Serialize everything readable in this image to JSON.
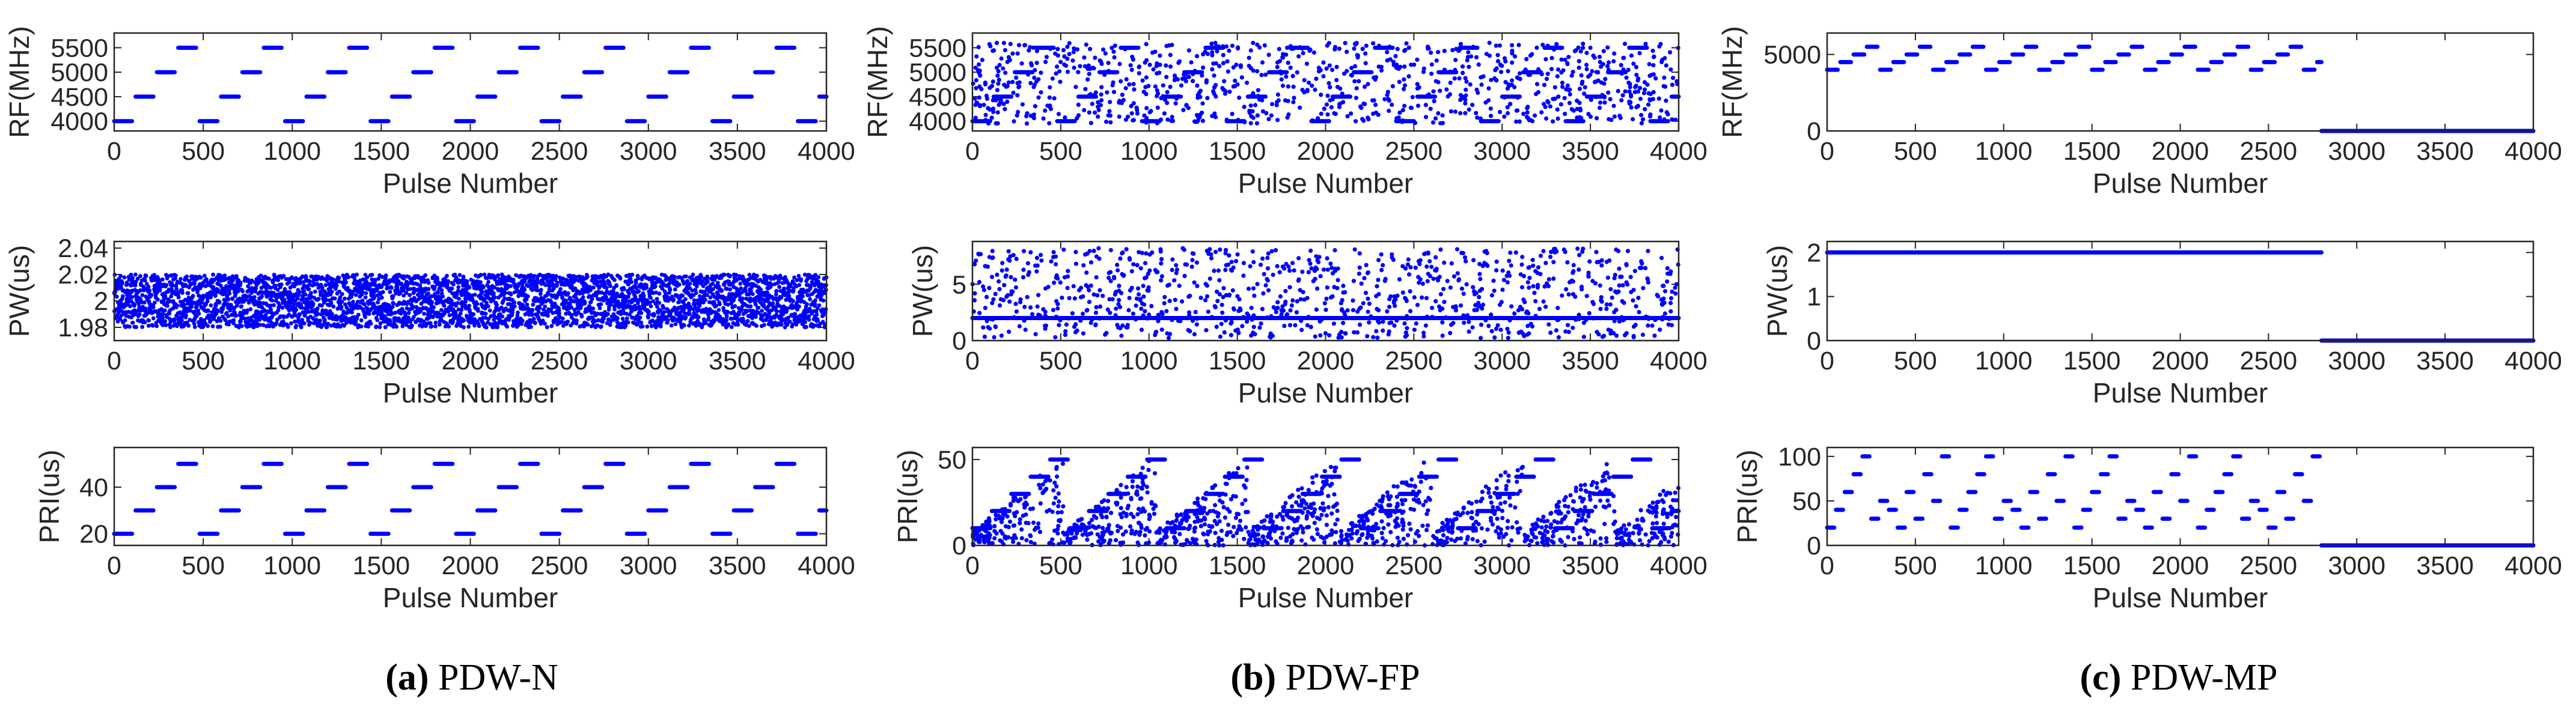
{
  "colors": {
    "marker": "#0000ff",
    "axis": "#262626",
    "background": "#ffffff"
  },
  "figure": {
    "panels": [
      {
        "id": "a",
        "caption_letter": "(a)",
        "caption_text": "PDW-N"
      },
      {
        "id": "b",
        "caption_letter": "(b)",
        "caption_text": "PDW-FP"
      },
      {
        "id": "c",
        "caption_letter": "(c)",
        "caption_text": "PDW-MP"
      }
    ]
  },
  "chart_data": [
    {
      "panel": "a",
      "type": "scatter",
      "xlabel": "Pulse Number",
      "ylabel": "RF(MHz)",
      "xlim": [
        0,
        4000
      ],
      "ylim": [
        3800,
        5800
      ],
      "xticks": [
        0,
        500,
        1000,
        1500,
        2000,
        2500,
        3000,
        3500,
        4000
      ],
      "yticks": [
        4000,
        4500,
        5000,
        5500
      ],
      "yticklabels": [
        "4000",
        "4500",
        "5000",
        "5500"
      ],
      "pattern": {
        "kind": "staircase",
        "levels": [
          4000,
          4500,
          5000,
          5500
        ],
        "segment_length": 100,
        "gap": 20,
        "start_offset": 0,
        "x_end": 4000
      }
    },
    {
      "panel": "a",
      "type": "scatter",
      "xlabel": "Pulse Number",
      "ylabel": "PW(us)",
      "xlim": [
        0,
        4000
      ],
      "ylim": [
        1.97,
        2.045
      ],
      "xticks": [
        0,
        500,
        1000,
        1500,
        2000,
        2500,
        3000,
        3500,
        4000
      ],
      "yticks": [
        1.98,
        2,
        2.02,
        2.04
      ],
      "yticklabels": [
        "1.98",
        "2",
        "2.02",
        "2.04"
      ],
      "pattern": {
        "kind": "uniform_band",
        "n_points": 4000,
        "band": [
          1.98,
          2.02
        ],
        "x_end": 4000
      }
    },
    {
      "panel": "a",
      "type": "scatter",
      "xlabel": "Pulse Number",
      "ylabel": "PRI(us)",
      "xlim": [
        0,
        4000
      ],
      "ylim": [
        15,
        57
      ],
      "xticks": [
        0,
        500,
        1000,
        1500,
        2000,
        2500,
        3000,
        3500,
        4000
      ],
      "yticks": [
        20,
        40
      ],
      "yticklabels": [
        "20",
        "40"
      ],
      "pattern": {
        "kind": "staircase",
        "levels": [
          20,
          30,
          40,
          50
        ],
        "segment_length": 100,
        "gap": 20,
        "start_offset": 0,
        "x_end": 4000
      }
    },
    {
      "panel": "b",
      "type": "scatter",
      "xlabel": "Pulse Number",
      "ylabel": "RF(MHz)",
      "xlim": [
        0,
        4000
      ],
      "ylim": [
        3800,
        5800
      ],
      "xticks": [
        0,
        500,
        1000,
        1500,
        2000,
        2500,
        3000,
        3500,
        4000
      ],
      "yticks": [
        4000,
        4500,
        5000,
        5500
      ],
      "yticklabels": [
        "4000",
        "4500",
        "5000",
        "5500"
      ],
      "pattern": {
        "kind": "staircase_noise",
        "levels": [
          4000,
          4500,
          5000,
          5500
        ],
        "segment_length": 100,
        "gap": 20,
        "start_offset": 0,
        "x_end": 4000,
        "n_noise": 1000,
        "noise_range": [
          3950,
          5600
        ]
      }
    },
    {
      "panel": "b",
      "type": "scatter",
      "xlabel": "Pulse Number",
      "ylabel": "PW(us)",
      "xlim": [
        0,
        4000
      ],
      "ylim": [
        0,
        8.8
      ],
      "xticks": [
        0,
        500,
        1000,
        1500,
        2000,
        2500,
        3000,
        3500,
        4000
      ],
      "yticks": [
        0,
        5
      ],
      "yticklabels": [
        "0",
        "5"
      ],
      "pattern": {
        "kind": "line_noise",
        "line_value": 2,
        "x_end": 4000,
        "n_noise": 1000,
        "noise_range": [
          0.2,
          8.2
        ]
      }
    },
    {
      "panel": "b",
      "type": "scatter",
      "xlabel": "Pulse Number",
      "ylabel": "PRI(us)",
      "xlim": [
        0,
        4000
      ],
      "ylim": [
        0,
        57
      ],
      "xticks": [
        0,
        500,
        1000,
        1500,
        2000,
        2500,
        3000,
        3500,
        4000
      ],
      "yticks": [
        0,
        50
      ],
      "yticklabels": [
        "0",
        "50"
      ],
      "pattern": {
        "kind": "staircase_rampnoise",
        "levels": [
          10,
          20,
          30,
          40,
          50
        ],
        "segment_length": 100,
        "gap": 10,
        "start_offset": 0,
        "x_end": 4000,
        "n_noise": 1300
      }
    },
    {
      "panel": "c",
      "type": "scatter",
      "xlabel": "Pulse Number",
      "ylabel": "RF(MHz)",
      "xlim": [
        0,
        4000
      ],
      "ylim": [
        0,
        6400
      ],
      "xticks": [
        0,
        500,
        1000,
        1500,
        2000,
        2500,
        3000,
        3500,
        4000
      ],
      "yticks": [
        0,
        5000
      ],
      "yticklabels": [
        "0",
        "5000"
      ],
      "pattern": {
        "kind": "staircase_then_zero",
        "levels": [
          4000,
          4500,
          5000,
          5500
        ],
        "segment_length": 60,
        "gap": 15,
        "start_offset": 0,
        "switch_at": 2800,
        "x_end": 4000,
        "zero_value": 0
      }
    },
    {
      "panel": "c",
      "type": "scatter",
      "xlabel": "Pulse Number",
      "ylabel": "PW(us)",
      "xlim": [
        0,
        4000
      ],
      "ylim": [
        0,
        2.25
      ],
      "xticks": [
        0,
        500,
        1000,
        1500,
        2000,
        2500,
        3000,
        3500,
        4000
      ],
      "yticks": [
        0,
        1,
        2
      ],
      "yticklabels": [
        "0",
        "1",
        "2"
      ],
      "pattern": {
        "kind": "const_then_zero",
        "value": 2,
        "switch_at": 2800,
        "x_end": 4000,
        "zero_value": 0
      }
    },
    {
      "panel": "c",
      "type": "scatter",
      "xlabel": "Pulse Number",
      "ylabel": "PRI(us)",
      "xlim": [
        0,
        4000
      ],
      "ylim": [
        0,
        110
      ],
      "xticks": [
        0,
        500,
        1000,
        1500,
        2000,
        2500,
        3000,
        3500,
        4000
      ],
      "yticks": [
        0,
        50,
        100
      ],
      "yticklabels": [
        "0",
        "50",
        "100"
      ],
      "pattern": {
        "kind": "multi_staircase_then_zero",
        "levels": [
          20,
          30,
          40,
          50,
          60,
          80,
          100
        ],
        "segment_length": 40,
        "gap": 10,
        "start_offset": 0,
        "switch_at": 2800,
        "x_end": 4000,
        "zero_value": 0
      }
    }
  ]
}
